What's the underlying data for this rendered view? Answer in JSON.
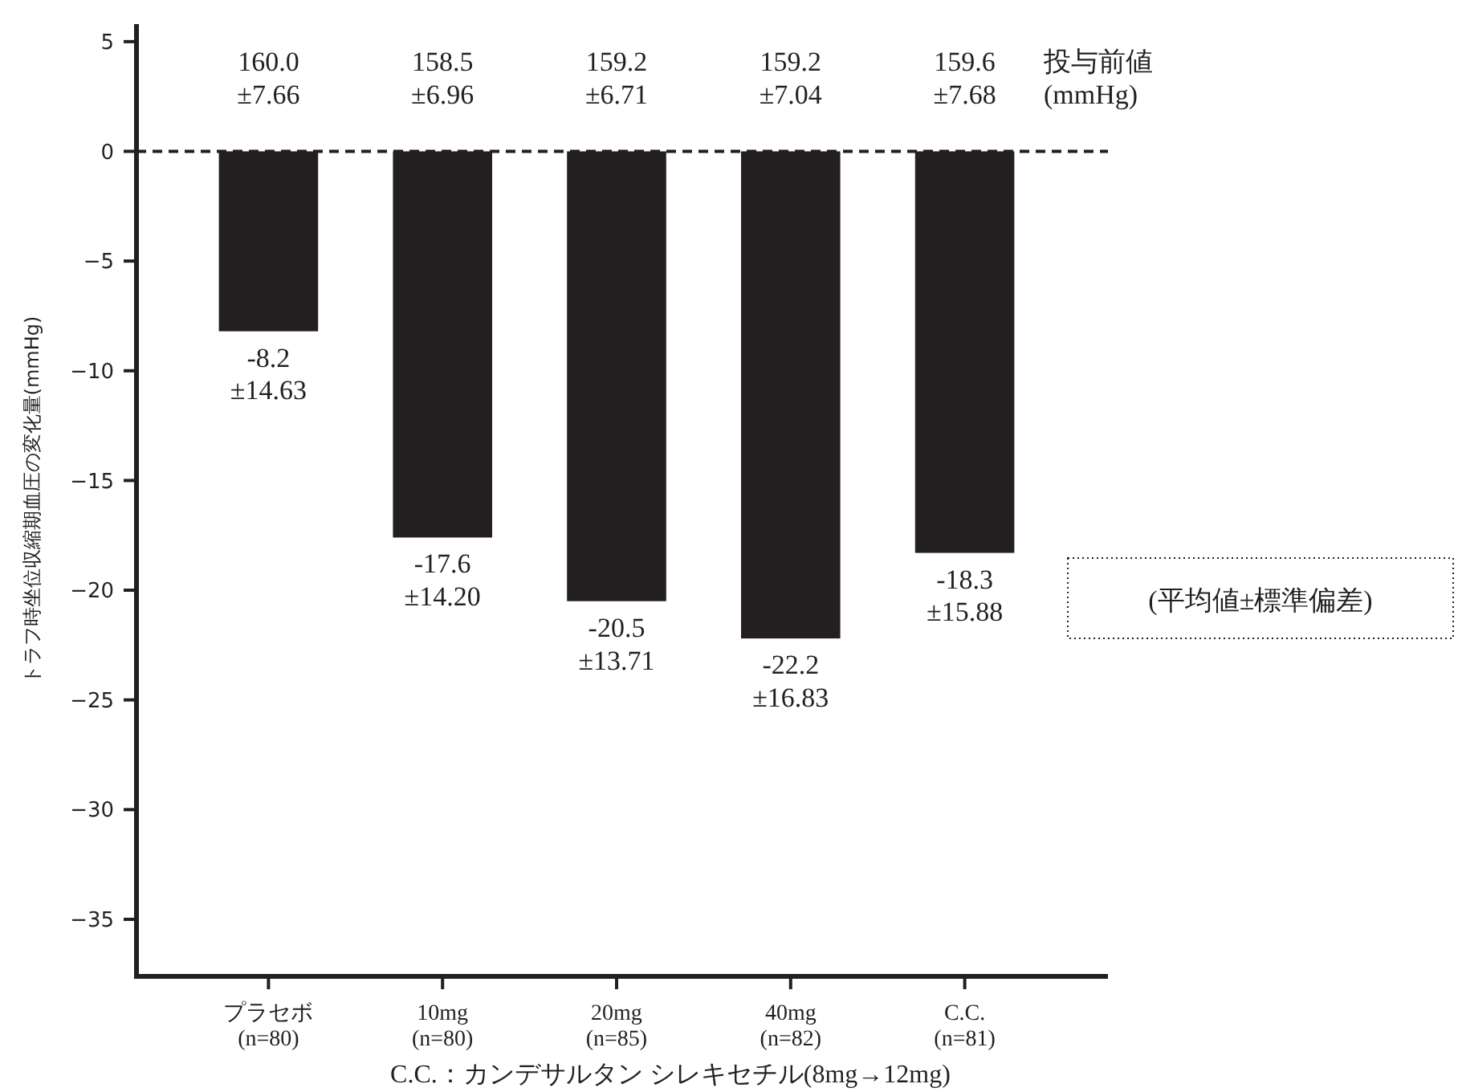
{
  "chart_data": {
    "type": "bar",
    "ylabel": "トラフ時坐位収縮期血圧の変化量(mmHg)",
    "categories": [
      "プラセボ\n(n=80)",
      "10mg\n(n=80)",
      "20mg\n(n=85)",
      "40mg\n(n=82)",
      "C.C.\n(n=81)"
    ],
    "values": [
      -8.2,
      -17.6,
      -20.5,
      -22.2,
      -18.3
    ],
    "value_labels": [
      "-8.2\n±14.63",
      "-17.6\n±14.20",
      "-20.5\n±13.71",
      "-22.2\n±16.83",
      "-18.3\n±15.88"
    ],
    "color": "#231f20",
    "ylim": [
      -37.6,
      5.8
    ],
    "yticks": [
      5,
      0,
      -5,
      -10,
      -15,
      -20,
      -25,
      -30,
      -35
    ],
    "ref_lines": [
      {
        "axis": "y",
        "value": 0,
        "line_style": "dashed",
        "color": "#231f20"
      }
    ],
    "annotations": [
      {
        "text": "160.0\n±7.66",
        "x": "プラセボ\n(n=80)",
        "y": 0
      },
      {
        "text": "158.5\n±6.96",
        "x": "10mg\n(n=80)",
        "y": 0
      },
      {
        "text": "159.2\n±6.71",
        "x": "20mg\n(n=85)",
        "y": 0
      },
      {
        "text": "159.2\n±7.04",
        "x": "40mg\n(n=82)",
        "y": 0
      },
      {
        "text": "159.6\n±7.68",
        "x": "C.C.\n(n=81)",
        "y": 0
      },
      "投与前値\n(mmHg)",
      "(平均値±標準偏差)",
      "C.C.：カンデサルタン シレキセチル(8mg→12mg)"
    ],
    "grid": false
  }
}
